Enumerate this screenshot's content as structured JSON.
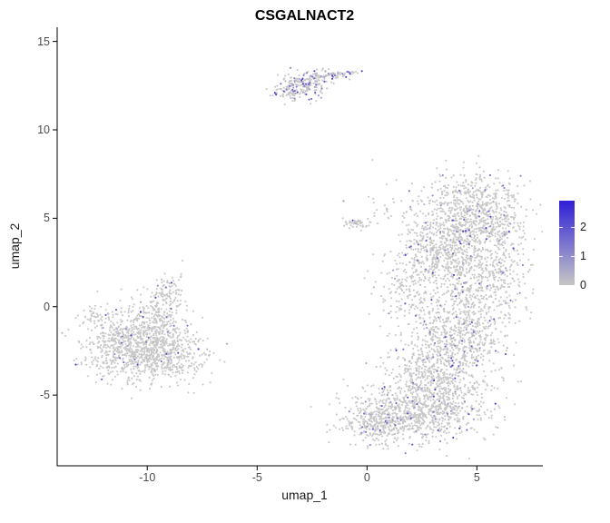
{
  "chart_data": {
    "type": "scatter",
    "title": "CSGALNACT2",
    "xlabel": "umap_1",
    "ylabel": "umap_2",
    "xlim": [
      -14.1,
      8.0
    ],
    "ylim": [
      -9.0,
      15.8
    ],
    "x_ticks": [
      -10,
      -5,
      0,
      5
    ],
    "y_ticks": [
      15,
      10,
      5,
      0,
      -5
    ],
    "grid": false,
    "legend_position": "right",
    "point_color_low": "#c8c8c8",
    "point_color_high": "#3018d2",
    "colorbar": {
      "tick_values": [
        2,
        1,
        0
      ],
      "tick_labels": [
        "2",
        "1",
        "0"
      ],
      "min": 0,
      "max": 2.9,
      "low_color": "#c6c6c6",
      "high_color": "#2f1fd6"
    },
    "seed": 42,
    "clusters": [
      {
        "cx": -3.15,
        "cy": 12.4,
        "sx": 0.55,
        "sy": 0.42,
        "n": 190,
        "expr_frac": 0.28
      },
      {
        "cx": -2.3,
        "cy": 12.85,
        "sx": 0.45,
        "sy": 0.28,
        "n": 70,
        "expr_frac": 0.22
      },
      {
        "cx": -1.35,
        "cy": 13.1,
        "sx": 0.42,
        "sy": 0.1,
        "n": 55,
        "rot": 0.18,
        "expr_frac": 0.25
      },
      {
        "cx": -10.6,
        "cy": -2.2,
        "sx": 1.15,
        "sy": 0.95,
        "n": 950,
        "expr_frac": 0.025
      },
      {
        "cx": -8.9,
        "cy": -2.8,
        "sx": 0.85,
        "sy": 0.7,
        "n": 280,
        "expr_frac": 0.03
      },
      {
        "cx": -9.4,
        "cy": -0.4,
        "sx": 0.5,
        "sy": 0.8,
        "n": 170,
        "expr_frac": 0.04
      },
      {
        "cx": -9.15,
        "cy": 1.0,
        "sx": 0.35,
        "sy": 0.45,
        "n": 60,
        "expr_frac": 0.06
      },
      {
        "cx": -12.25,
        "cy": -0.55,
        "sx": 0.35,
        "sy": 0.45,
        "n": 45,
        "expr_frac": 0.05
      },
      {
        "cx": 4.7,
        "cy": 5.2,
        "sx": 1.15,
        "sy": 1.1,
        "n": 820,
        "expr_frac": 0.06
      },
      {
        "cx": 3.2,
        "cy": 3.1,
        "sx": 1.0,
        "sy": 1.0,
        "n": 420,
        "expr_frac": 0.06
      },
      {
        "cx": 5.0,
        "cy": 1.4,
        "sx": 1.0,
        "sy": 1.3,
        "n": 460,
        "expr_frac": 0.05
      },
      {
        "cx": 4.2,
        "cy": -1.6,
        "sx": 1.1,
        "sy": 1.2,
        "n": 520,
        "expr_frac": 0.07
      },
      {
        "cx": 3.0,
        "cy": -4.1,
        "sx": 1.2,
        "sy": 1.1,
        "n": 620,
        "expr_frac": 0.07
      },
      {
        "cx": 2.2,
        "cy": -6.0,
        "sx": 1.5,
        "sy": 0.85,
        "n": 720,
        "expr_frac": 0.07
      },
      {
        "cx": 0.35,
        "cy": -6.6,
        "sx": 0.75,
        "sy": 0.55,
        "n": 260,
        "expr_frac": 0.06
      },
      {
        "cx": 2.0,
        "cy": 0.6,
        "sx": 0.8,
        "sy": 1.0,
        "n": 150,
        "expr_frac": 0.05
      },
      {
        "cx": -0.45,
        "cy": 4.7,
        "sx": 0.35,
        "sy": 0.14,
        "n": 45,
        "expr_frac": 0.1
      },
      {
        "cx": 1.2,
        "cy": 5.6,
        "sx": 0.9,
        "sy": 0.6,
        "n": 30,
        "expr_frac": 0.05
      },
      {
        "cx": 6.3,
        "cy": 2.8,
        "sx": 0.5,
        "sy": 1.6,
        "n": 120,
        "expr_frac": 0.05
      }
    ],
    "outliers": [
      [
        0.25,
        8.3
      ],
      [
        -1.1,
        5.0
      ],
      [
        1.8,
        4.6
      ]
    ]
  }
}
